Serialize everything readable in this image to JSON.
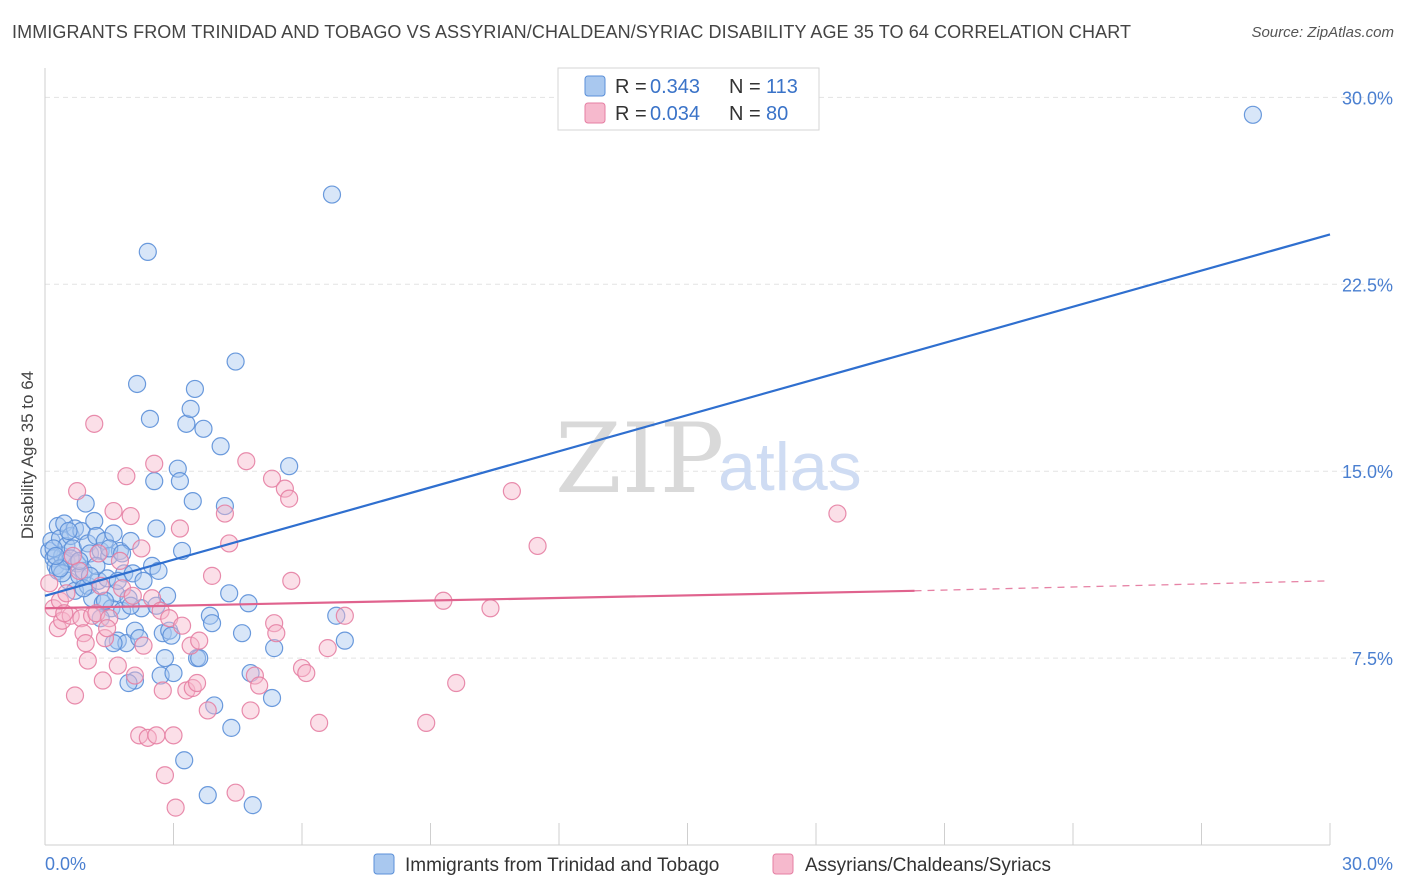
{
  "title": "IMMIGRANTS FROM TRINIDAD AND TOBAGO VS ASSYRIAN/CHALDEAN/SYRIAC DISABILITY AGE 35 TO 64 CORRELATION CHART",
  "source": "Source: ZipAtlas.com",
  "watermark": {
    "zip": "ZIP",
    "atlas": "atlas"
  },
  "colors": {
    "blue_fill": "#a9c8ef",
    "blue_stroke": "#5b8fd8",
    "blue_line": "#2f6fcf",
    "pink_fill": "#f6b9cd",
    "pink_stroke": "#e57fa3",
    "pink_line": "#e0638e",
    "grid": "#e3e3e3",
    "axis_label": "#4a7fd0"
  },
  "legend": {
    "r_label": "R =",
    "n_label": "N =",
    "rows": [
      {
        "r": "0.343",
        "n": "113"
      },
      {
        "r": "0.034",
        "n": "80"
      }
    ]
  },
  "chart_data": {
    "type": "scatter",
    "title": "IMMIGRANTS FROM TRINIDAD AND TOBAGO VS ASSYRIAN/CHALDEAN/SYRIAC DISABILITY AGE 35 TO 64 CORRELATION CHART",
    "xlabel": "",
    "ylabel": "Disability Age 35 to 64",
    "xlim": [
      0,
      30
    ],
    "ylim": [
      0,
      31.5
    ],
    "x_tick_labels": [
      "0.0%",
      "30.0%"
    ],
    "y_ticks": [
      7.5,
      15.0,
      22.5,
      30.0
    ],
    "y_tick_labels": [
      "7.5%",
      "15.0%",
      "22.5%",
      "30.0%"
    ],
    "grid": true,
    "legend_position": "top-center",
    "series": [
      {
        "name": "Immigrants from Trinidad and Tobago",
        "color": "#5b8fd8",
        "trend": {
          "x": [
            0,
            30
          ],
          "y": [
            10.0,
            24.5
          ],
          "style": "solid"
        },
        "points": [
          [
            0.1,
            11.8
          ],
          [
            0.15,
            12.2
          ],
          [
            0.2,
            11.5
          ],
          [
            0.25,
            11.2
          ],
          [
            0.3,
            12.8
          ],
          [
            0.3,
            11.0
          ],
          [
            0.35,
            12.3
          ],
          [
            0.4,
            11.6
          ],
          [
            0.45,
            12.9
          ],
          [
            0.5,
            12.0
          ],
          [
            0.5,
            11.4
          ],
          [
            0.55,
            10.6
          ],
          [
            0.6,
            12.4
          ],
          [
            0.65,
            11.9
          ],
          [
            0.7,
            10.2
          ],
          [
            0.7,
            12.7
          ],
          [
            0.75,
            11.3
          ],
          [
            0.8,
            10.8
          ],
          [
            0.85,
            12.6
          ],
          [
            0.9,
            11.0
          ],
          [
            0.95,
            13.7
          ],
          [
            1.0,
            12.1
          ],
          [
            1.0,
            10.4
          ],
          [
            1.05,
            11.7
          ],
          [
            1.1,
            9.9
          ],
          [
            1.15,
            13.0
          ],
          [
            1.2,
            12.4
          ],
          [
            1.25,
            10.6
          ],
          [
            1.3,
            11.8
          ],
          [
            1.35,
            9.7
          ],
          [
            1.4,
            12.2
          ],
          [
            1.45,
            10.7
          ],
          [
            1.5,
            11.6
          ],
          [
            1.55,
            9.5
          ],
          [
            1.6,
            12.5
          ],
          [
            1.65,
            10.1
          ],
          [
            1.7,
            8.2
          ],
          [
            1.75,
            11.8
          ],
          [
            1.8,
            9.4
          ],
          [
            1.85,
            10.9
          ],
          [
            1.9,
            8.1
          ],
          [
            1.95,
            9.9
          ],
          [
            2.0,
            12.2
          ],
          [
            2.05,
            10.9
          ],
          [
            2.1,
            6.6
          ],
          [
            2.1,
            8.6
          ],
          [
            2.15,
            18.5
          ],
          [
            2.2,
            8.3
          ],
          [
            2.3,
            10.6
          ],
          [
            2.4,
            23.8
          ],
          [
            2.45,
            17.1
          ],
          [
            2.5,
            11.2
          ],
          [
            2.55,
            14.6
          ],
          [
            2.6,
            12.7
          ],
          [
            2.65,
            11.0
          ],
          [
            2.7,
            6.8
          ],
          [
            2.75,
            8.5
          ],
          [
            2.8,
            7.5
          ],
          [
            2.85,
            10.0
          ],
          [
            2.9,
            8.6
          ],
          [
            3.0,
            6.9
          ],
          [
            3.1,
            15.1
          ],
          [
            3.15,
            14.6
          ],
          [
            3.2,
            11.8
          ],
          [
            3.25,
            3.4
          ],
          [
            3.3,
            16.9
          ],
          [
            3.4,
            17.5
          ],
          [
            3.45,
            13.8
          ],
          [
            3.5,
            18.3
          ],
          [
            3.55,
            7.5
          ],
          [
            3.6,
            7.5
          ],
          [
            3.7,
            16.7
          ],
          [
            3.8,
            2.0
          ],
          [
            3.85,
            9.2
          ],
          [
            3.9,
            8.9
          ],
          [
            3.95,
            5.6
          ],
          [
            4.1,
            16.0
          ],
          [
            4.2,
            13.6
          ],
          [
            4.3,
            10.1
          ],
          [
            4.35,
            4.7
          ],
          [
            4.45,
            19.4
          ],
          [
            4.6,
            8.5
          ],
          [
            4.75,
            9.7
          ],
          [
            4.8,
            6.9
          ],
          [
            4.85,
            1.6
          ],
          [
            5.3,
            5.9
          ],
          [
            5.35,
            7.9
          ],
          [
            5.7,
            15.2
          ],
          [
            6.7,
            26.1
          ],
          [
            6.8,
            9.2
          ],
          [
            7.0,
            8.2
          ],
          [
            1.2,
            11.2
          ],
          [
            0.6,
            11.5
          ],
          [
            0.9,
            10.3
          ],
          [
            1.3,
            9.1
          ],
          [
            0.4,
            10.9
          ],
          [
            1.6,
            8.1
          ],
          [
            1.95,
            6.5
          ],
          [
            2.25,
            9.5
          ],
          [
            2.95,
            8.4
          ],
          [
            0.8,
            11.4
          ],
          [
            1.05,
            10.8
          ],
          [
            1.5,
            11.9
          ],
          [
            0.2,
            11.9
          ],
          [
            0.35,
            11.1
          ],
          [
            1.8,
            11.7
          ],
          [
            2.0,
            9.6
          ],
          [
            0.55,
            12.6
          ],
          [
            1.4,
            9.8
          ],
          [
            1.7,
            10.6
          ],
          [
            2.6,
            9.6
          ],
          [
            0.25,
            11.6
          ],
          [
            28.2,
            29.3
          ]
        ]
      },
      {
        "name": "Assyrians/Chaldeans/Syriacs",
        "color": "#e57fa3",
        "trend": {
          "x": [
            0,
            20.3,
            30
          ],
          "y": [
            9.5,
            10.2,
            10.6
          ],
          "style": "solid-then-dashed"
        },
        "points": [
          [
            0.1,
            10.5
          ],
          [
            0.2,
            9.5
          ],
          [
            0.3,
            8.7
          ],
          [
            0.35,
            9.8
          ],
          [
            0.4,
            9.0
          ],
          [
            0.5,
            10.1
          ],
          [
            0.6,
            9.2
          ],
          [
            0.7,
            6.0
          ],
          [
            0.75,
            14.2
          ],
          [
            0.8,
            11.0
          ],
          [
            0.85,
            9.1
          ],
          [
            0.9,
            8.5
          ],
          [
            1.0,
            7.4
          ],
          [
            1.1,
            9.2
          ],
          [
            1.15,
            16.9
          ],
          [
            1.2,
            9.3
          ],
          [
            1.3,
            10.4
          ],
          [
            1.35,
            6.6
          ],
          [
            1.4,
            8.3
          ],
          [
            1.5,
            9.1
          ],
          [
            1.6,
            13.4
          ],
          [
            1.7,
            7.2
          ],
          [
            1.75,
            11.4
          ],
          [
            1.8,
            10.3
          ],
          [
            1.9,
            14.8
          ],
          [
            2.0,
            13.2
          ],
          [
            2.1,
            6.8
          ],
          [
            2.2,
            4.4
          ],
          [
            2.25,
            11.9
          ],
          [
            2.3,
            8.0
          ],
          [
            2.4,
            4.3
          ],
          [
            2.5,
            9.9
          ],
          [
            2.55,
            15.3
          ],
          [
            2.6,
            4.4
          ],
          [
            2.7,
            9.4
          ],
          [
            2.75,
            6.2
          ],
          [
            2.8,
            2.8
          ],
          [
            2.9,
            9.1
          ],
          [
            3.0,
            4.4
          ],
          [
            3.05,
            1.5
          ],
          [
            3.15,
            12.7
          ],
          [
            3.2,
            8.8
          ],
          [
            3.3,
            6.2
          ],
          [
            3.4,
            8.0
          ],
          [
            3.45,
            6.3
          ],
          [
            3.55,
            6.5
          ],
          [
            3.8,
            5.4
          ],
          [
            3.9,
            10.8
          ],
          [
            4.2,
            13.3
          ],
          [
            4.3,
            12.1
          ],
          [
            4.45,
            2.1
          ],
          [
            4.7,
            15.4
          ],
          [
            4.8,
            5.4
          ],
          [
            4.9,
            6.8
          ],
          [
            5.0,
            6.4
          ],
          [
            5.3,
            14.7
          ],
          [
            5.35,
            8.9
          ],
          [
            5.4,
            8.5
          ],
          [
            5.6,
            14.3
          ],
          [
            5.7,
            13.9
          ],
          [
            5.75,
            10.6
          ],
          [
            6.0,
            7.1
          ],
          [
            6.1,
            6.9
          ],
          [
            6.4,
            4.9
          ],
          [
            6.6,
            7.9
          ],
          [
            7.0,
            9.2
          ],
          [
            8.9,
            4.9
          ],
          [
            9.3,
            9.8
          ],
          [
            9.6,
            6.5
          ],
          [
            10.4,
            9.5
          ],
          [
            10.9,
            14.2
          ],
          [
            11.5,
            12.0
          ],
          [
            18.5,
            13.3
          ],
          [
            0.45,
            9.3
          ],
          [
            0.95,
            8.1
          ],
          [
            1.45,
            8.7
          ],
          [
            2.05,
            10.0
          ],
          [
            1.25,
            11.7
          ],
          [
            0.65,
            11.6
          ],
          [
            3.6,
            8.2
          ]
        ]
      }
    ]
  },
  "bottom_legend": [
    {
      "label": "Immigrants from Trinidad and Tobago"
    },
    {
      "label": "Assyrians/Chaldeans/Syriacs"
    }
  ]
}
